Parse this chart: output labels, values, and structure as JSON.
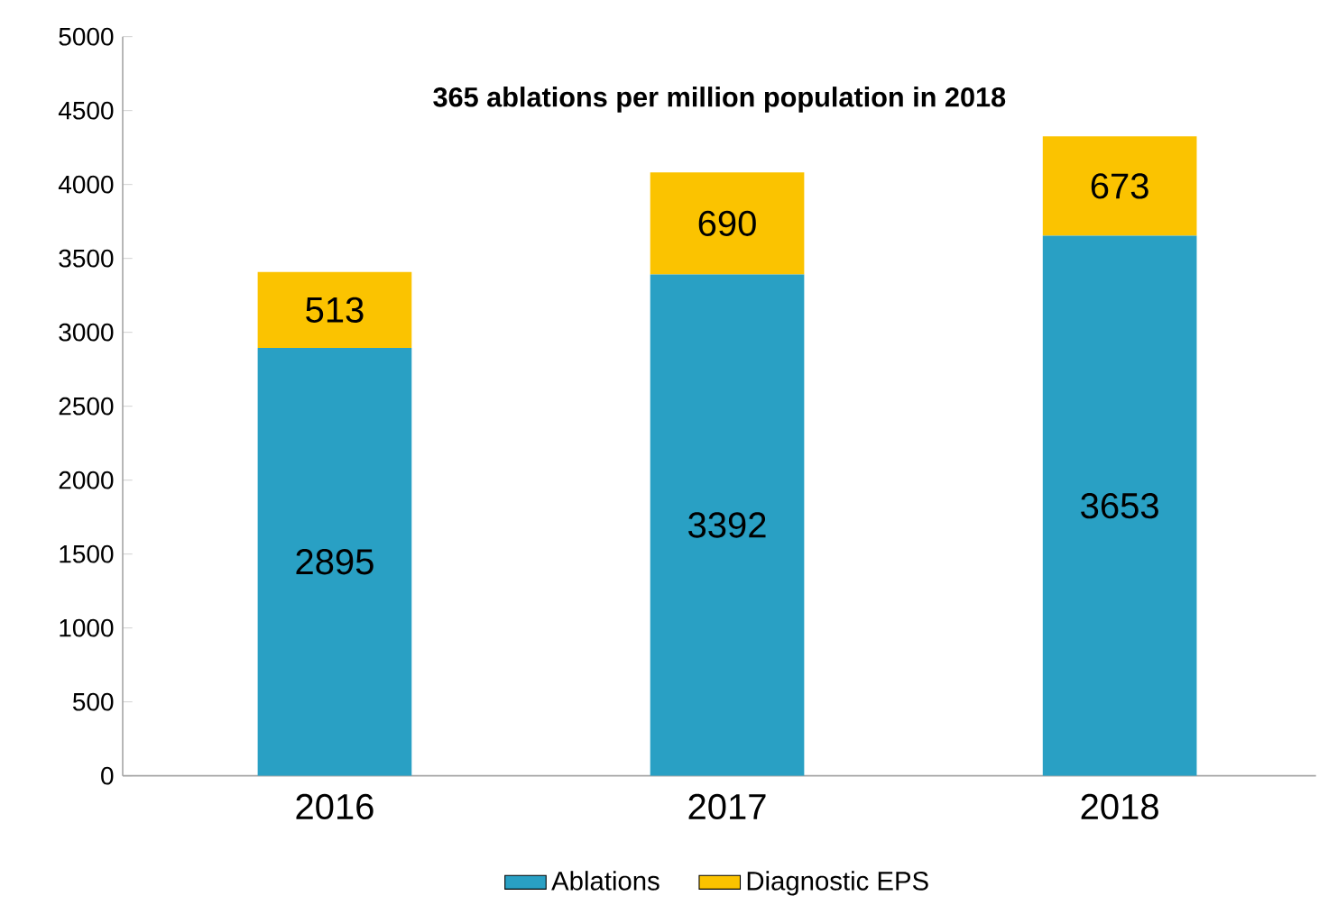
{
  "chart_data": {
    "type": "bar",
    "stacked": true,
    "title": "365 ablations per million population in 2018",
    "categories": [
      "2016",
      "2017",
      "2018"
    ],
    "series": [
      {
        "name": "Ablations",
        "color": "#29a0c4",
        "values": [
          2895,
          3392,
          3653
        ]
      },
      {
        "name": "Diagnostic EPS",
        "color": "#fbc300",
        "values": [
          513,
          690,
          673
        ]
      }
    ],
    "ylim": [
      0,
      5000
    ],
    "yticks": [
      0,
      500,
      1000,
      1500,
      2000,
      2500,
      3000,
      3500,
      4000,
      4500,
      5000
    ],
    "data_labels": true,
    "legend": "bottom"
  }
}
